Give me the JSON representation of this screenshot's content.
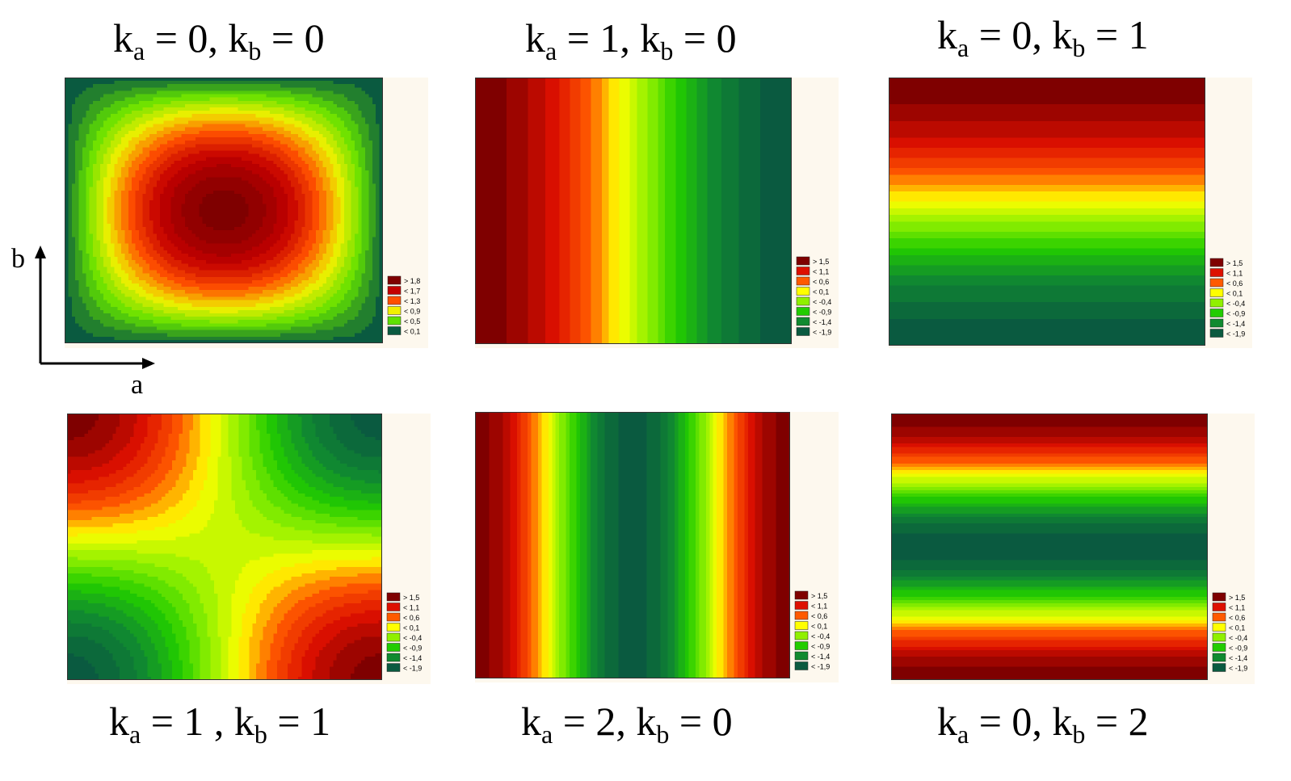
{
  "axes": {
    "x_label": "a",
    "y_label": "b"
  },
  "chart_data": [
    {
      "type": "heatmap",
      "title_k": [
        "0",
        "0"
      ],
      "mode": [
        0,
        0
      ],
      "legend": [
        "> 1,8",
        "< 1,7",
        "< 1,3",
        "< 0,9",
        "< 0,5",
        "< 0,1"
      ],
      "colors": [
        "#7f0000",
        "#c40000",
        "#ff5000",
        "#f0f000",
        "#60e000",
        "#0a5a40"
      ]
    },
    {
      "type": "heatmap",
      "title_k": [
        "1",
        "0"
      ],
      "mode": [
        1,
        0
      ],
      "legend": [
        "> 1,5",
        "< 1,1",
        "< 0,6",
        "< 0,1",
        "< -0,4",
        "< -0,9",
        "< -1,4",
        "< -1,9"
      ],
      "colors": [
        "#7f0000",
        "#dd1000",
        "#ff5a00",
        "#ffff00",
        "#90f000",
        "#22cc00",
        "#108a30",
        "#0a5a40"
      ]
    },
    {
      "type": "heatmap",
      "title_k": [
        "0",
        "1"
      ],
      "mode": [
        0,
        1
      ],
      "legend": [
        "> 1,5",
        "< 1,1",
        "< 0,6",
        "< 0,1",
        "< -0,4",
        "< -0,9",
        "< -1,4",
        "< -1,9"
      ],
      "colors": [
        "#7f0000",
        "#dd1000",
        "#ff5a00",
        "#ffff00",
        "#90f000",
        "#22cc00",
        "#108a30",
        "#0a5a40"
      ]
    },
    {
      "type": "heatmap",
      "title_k": [
        "1",
        "1"
      ],
      "mode": [
        1,
        1
      ],
      "legend": [
        "> 1,5",
        "< 1,1",
        "< 0,6",
        "< 0,1",
        "< -0,4",
        "< -0,9",
        "< -1,4",
        "< -1,9"
      ],
      "colors": [
        "#7f0000",
        "#dd1000",
        "#ff5a00",
        "#ffff00",
        "#90f000",
        "#22cc00",
        "#108a30",
        "#0a5a40"
      ]
    },
    {
      "type": "heatmap",
      "title_k": [
        "2",
        "0"
      ],
      "mode": [
        2,
        0
      ],
      "legend": [
        "> 1,5",
        "< 1,1",
        "< 0,6",
        "< 0,1",
        "< -0,4",
        "< -0,9",
        "< -1,4",
        "< -1,9"
      ],
      "colors": [
        "#7f0000",
        "#dd1000",
        "#ff5a00",
        "#ffff00",
        "#90f000",
        "#22cc00",
        "#108a30",
        "#0a5a40"
      ]
    },
    {
      "type": "heatmap",
      "title_k": [
        "0",
        "2"
      ],
      "mode": [
        0,
        2
      ],
      "legend": [
        "> 1,5",
        "< 1,1",
        "< 0,6",
        "< 0,1",
        "< -0,4",
        "< -0,9",
        "< -1,4",
        "< -1,9"
      ],
      "colors": [
        "#7f0000",
        "#dd1000",
        "#ff5a00",
        "#ffff00",
        "#90f000",
        "#22cc00",
        "#108a30",
        "#0a5a40"
      ]
    }
  ]
}
